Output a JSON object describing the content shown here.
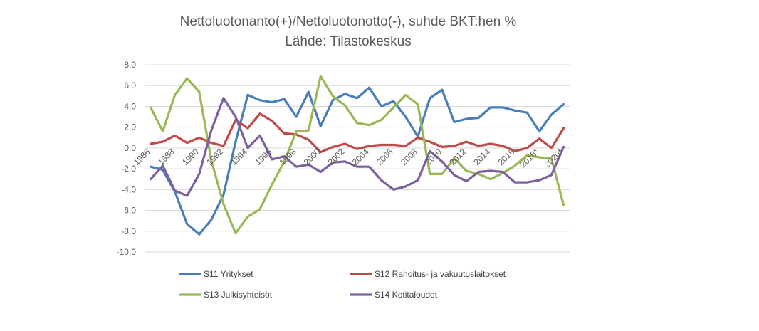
{
  "chart_data": {
    "type": "line",
    "title": "Nettoluotonanto(+)/Nettoluotonotto(-), suhde BKT:hen %",
    "subtitle": "Lähde: Tilastokeskus",
    "xlabel": "",
    "ylabel": "",
    "ylim": [
      -10,
      8
    ],
    "yticks": [
      "8,0",
      "6,0",
      "4,0",
      "2,0",
      "0,0",
      "-2,0",
      "-4,0",
      "-6,0",
      "-8,0",
      "-10,0"
    ],
    "grid": true,
    "legend_position": "bottom",
    "categories": [
      "1986",
      "1987",
      "1988",
      "1989",
      "1990",
      "1991",
      "1992",
      "1993",
      "1994",
      "1995",
      "1996",
      "1997",
      "1998",
      "1999",
      "2000",
      "2001",
      "2002",
      "2003",
      "2004",
      "2005",
      "2006",
      "2007",
      "2008",
      "2009",
      "2010",
      "2011",
      "2012",
      "2013",
      "2014",
      "2015",
      "2016",
      "2017",
      "2018*",
      "2019*",
      "2020*"
    ],
    "tick_labels": [
      "1986",
      "1988",
      "1990",
      "1992",
      "1994",
      "1996",
      "1998",
      "2000",
      "2002",
      "2004",
      "2006",
      "2008",
      "2010",
      "2012",
      "2014",
      "2016",
      "2018*",
      "2020*"
    ],
    "series": [
      {
        "name": "S11 Yritykset",
        "color": "#4a7ebb",
        "values": [
          -1.8,
          -2.1,
          -4.2,
          -7.3,
          -8.3,
          -6.9,
          -4.5,
          0.6,
          5.1,
          4.6,
          4.4,
          4.7,
          3.0,
          5.4,
          2.1,
          4.6,
          5.2,
          4.8,
          5.8,
          4.0,
          4.5,
          3.0,
          1.1,
          4.8,
          5.6,
          2.5,
          2.8,
          2.9,
          3.9,
          3.9,
          3.6,
          3.4,
          1.6,
          3.2,
          4.2
        ]
      },
      {
        "name": "S12 Rahoitus- ja vakuutuslaitokset",
        "color": "#be4b48",
        "values": [
          0.4,
          0.6,
          1.2,
          0.5,
          1.0,
          0.5,
          0.2,
          2.7,
          1.9,
          3.3,
          2.6,
          1.4,
          1.3,
          0.8,
          -0.4,
          0.1,
          0.4,
          -0.1,
          0.2,
          0.3,
          0.3,
          0.2,
          1.0,
          0.6,
          0.1,
          0.2,
          0.6,
          0.2,
          0.4,
          0.2,
          -0.3,
          0.0,
          0.9,
          0.0,
          1.9
        ]
      },
      {
        "name": "S13 Julkisyhteisöt",
        "color": "#98b954",
        "values": [
          3.9,
          1.6,
          5.1,
          6.7,
          5.4,
          -1.2,
          -5.4,
          -8.2,
          -6.6,
          -5.9,
          -3.5,
          -1.3,
          1.6,
          1.7,
          6.9,
          5.0,
          4.1,
          2.4,
          2.2,
          2.7,
          3.9,
          5.1,
          4.2,
          -2.5,
          -2.5,
          -1.0,
          -2.2,
          -2.5,
          -3.0,
          -2.4,
          -1.7,
          -0.7,
          -0.9,
          -1.0,
          -5.5
        ]
      },
      {
        "name": "S14 Kotitaloudet",
        "color": "#7d60a0",
        "values": [
          -3.0,
          -1.7,
          -4.1,
          -4.6,
          -2.5,
          1.7,
          4.8,
          3.0,
          0.0,
          1.2,
          -1.1,
          -0.8,
          -1.8,
          -1.6,
          -2.3,
          -1.4,
          -1.3,
          -1.8,
          -1.8,
          -3.1,
          -4.0,
          -3.7,
          -3.1,
          -0.3,
          -1.3,
          -2.6,
          -3.2,
          -2.3,
          -2.2,
          -2.3,
          -3.3,
          -3.3,
          -3.1,
          -2.6,
          0.1
        ]
      }
    ]
  }
}
